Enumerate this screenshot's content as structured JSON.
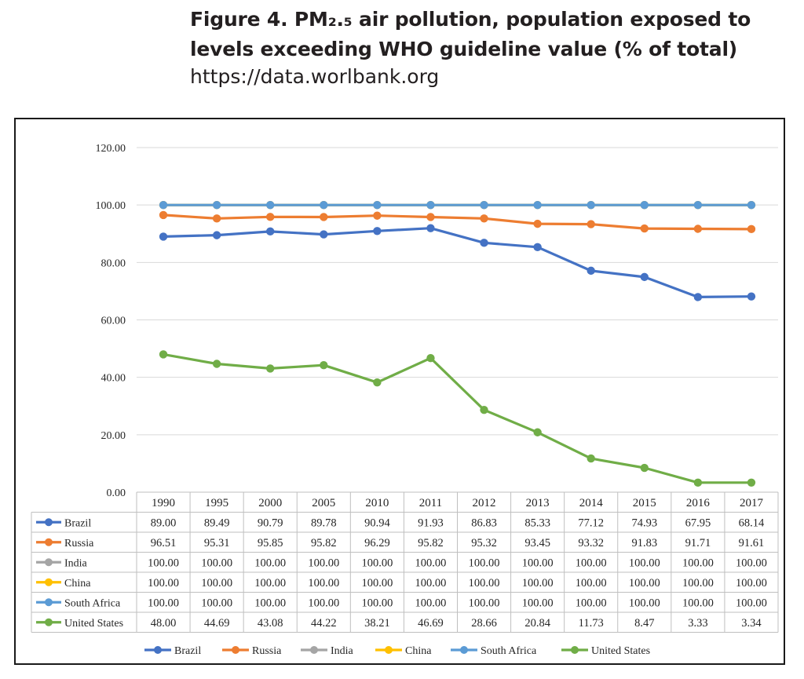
{
  "header": {
    "line1": "Figure 4. PM₂.₅ air pollution, population exposed to",
    "line2": "levels exceeding WHO guideline value (% of total)",
    "line3": "https://data.worlbank.org"
  },
  "chart_data": {
    "type": "line",
    "title": "Figure 4. PM2.5 air pollution, population exposed to levels exceeding WHO guideline value (% of total)",
    "source": "https://data.worlbank.org",
    "xlabel": "",
    "ylabel": "",
    "ylim": [
      0,
      120
    ],
    "yticks": [
      "0.00",
      "20.00",
      "40.00",
      "60.00",
      "80.00",
      "100.00",
      "120.00"
    ],
    "categories": [
      "1990",
      "1995",
      "2000",
      "2005",
      "2010",
      "2011",
      "2012",
      "2013",
      "2014",
      "2015",
      "2016",
      "2017"
    ],
    "series": [
      {
        "name": "Brazil",
        "color": "#4472c4",
        "values": [
          89.0,
          89.49,
          90.79,
          89.78,
          90.94,
          91.93,
          86.83,
          85.33,
          77.12,
          74.93,
          67.95,
          68.14
        ],
        "labels": [
          "89.00",
          "89.49",
          "90.79",
          "89.78",
          "90.94",
          "91.93",
          "86.83",
          "85.33",
          "77.12",
          "74.93",
          "67.95",
          "68.14"
        ]
      },
      {
        "name": "Russia",
        "color": "#ed7d31",
        "values": [
          96.51,
          95.31,
          95.85,
          95.82,
          96.29,
          95.82,
          95.32,
          93.45,
          93.32,
          91.83,
          91.71,
          91.61
        ],
        "labels": [
          "96.51",
          "95.31",
          "95.85",
          "95.82",
          "96.29",
          "95.82",
          "95.32",
          "93.45",
          "93.32",
          "91.83",
          "91.71",
          "91.61"
        ]
      },
      {
        "name": "India",
        "color": "#a5a5a5",
        "values": [
          100,
          100,
          100,
          100,
          100,
          100,
          100,
          100,
          100,
          100,
          100,
          100
        ],
        "labels": [
          "100.00",
          "100.00",
          "100.00",
          "100.00",
          "100.00",
          "100.00",
          "100.00",
          "100.00",
          "100.00",
          "100.00",
          "100.00",
          "100.00"
        ]
      },
      {
        "name": "China",
        "color": "#ffc000",
        "values": [
          100,
          100,
          100,
          100,
          100,
          100,
          100,
          100,
          100,
          100,
          100,
          100
        ],
        "labels": [
          "100.00",
          "100.00",
          "100.00",
          "100.00",
          "100.00",
          "100.00",
          "100.00",
          "100.00",
          "100.00",
          "100.00",
          "100.00",
          "100.00"
        ]
      },
      {
        "name": "South Africa",
        "color": "#5b9bd5",
        "values": [
          100,
          100,
          100,
          100,
          100,
          100,
          100,
          100,
          100,
          100,
          100,
          100
        ],
        "labels": [
          "100.00",
          "100.00",
          "100.00",
          "100.00",
          "100.00",
          "100.00",
          "100.00",
          "100.00",
          "100.00",
          "100.00",
          "100.00",
          "100.00"
        ]
      },
      {
        "name": "United States",
        "color": "#70ad47",
        "values": [
          48.0,
          44.69,
          43.08,
          44.22,
          38.21,
          46.69,
          28.66,
          20.84,
          11.73,
          8.47,
          3.33,
          3.34
        ],
        "labels": [
          "48.00",
          "44.69",
          "43.08",
          "44.22",
          "38.21",
          "46.69",
          "28.66",
          "20.84",
          "11.73",
          "8.47",
          "3.33",
          "3.34"
        ]
      }
    ],
    "legend_position": "bottom",
    "grid": true,
    "data_table": true
  }
}
